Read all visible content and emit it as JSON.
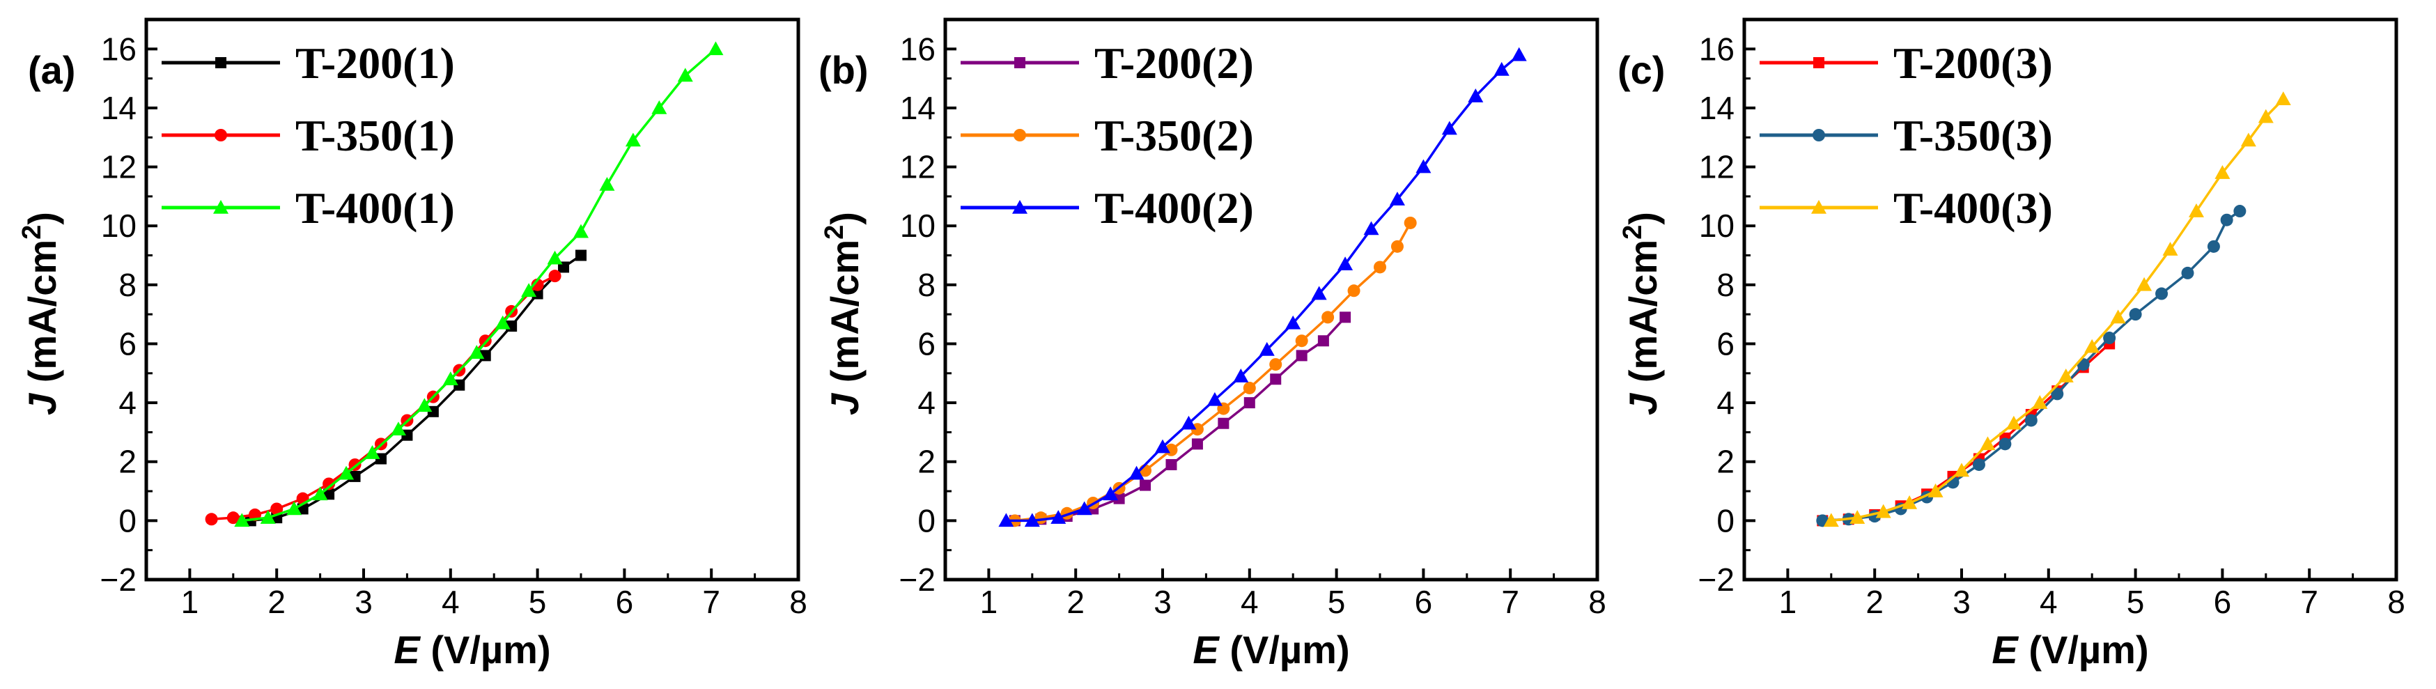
{
  "figure_title": "",
  "chart_data": [
    {
      "panel_label": "(a)",
      "type": "line",
      "xlabel_italic": "E",
      "xlabel_unit": " (V/µm)",
      "ylabel_italic": "J",
      "ylabel_unit": " (mA/cm",
      "ylabel_sup": "2",
      "ylabel_close": ")",
      "xlim": [
        0.5,
        8
      ],
      "ylim": [
        -2,
        17
      ],
      "xticks": [
        1,
        2,
        3,
        4,
        5,
        6,
        7,
        8
      ],
      "yticks": [
        -2,
        0,
        2,
        4,
        6,
        8,
        10,
        12,
        14,
        16
      ],
      "xtick_labels": [
        "1",
        "2",
        "3",
        "4",
        "5",
        "6",
        "7",
        "8"
      ],
      "ytick_labels": [
        "−2",
        "0",
        "2",
        "4",
        "6",
        "8",
        "10",
        "12",
        "14",
        "16"
      ],
      "series": [
        {
          "name": "T-200(1)",
          "color": "#000000",
          "marker": "square",
          "x": [
            1.7,
            2.0,
            2.3,
            2.6,
            2.9,
            3.2,
            3.5,
            3.8,
            4.1,
            4.4,
            4.7,
            5.0,
            5.3,
            5.5
          ],
          "y": [
            0.0,
            0.1,
            0.4,
            0.9,
            1.5,
            2.1,
            2.9,
            3.7,
            4.6,
            5.6,
            6.6,
            7.7,
            8.6,
            9.0
          ]
        },
        {
          "name": "T-350(1)",
          "color": "#ff0000",
          "marker": "circle",
          "x": [
            1.25,
            1.5,
            1.75,
            2.0,
            2.3,
            2.6,
            2.9,
            3.2,
            3.5,
            3.8,
            4.1,
            4.4,
            4.7,
            5.0,
            5.2
          ],
          "y": [
            0.05,
            0.1,
            0.2,
            0.4,
            0.75,
            1.25,
            1.9,
            2.6,
            3.4,
            4.2,
            5.1,
            6.1,
            7.1,
            8.0,
            8.3
          ]
        },
        {
          "name": "T-400(1)",
          "color": "#00ff00",
          "marker": "triangle",
          "x": [
            1.6,
            1.9,
            2.2,
            2.5,
            2.8,
            3.1,
            3.4,
            3.7,
            4.0,
            4.3,
            4.6,
            4.9,
            5.2,
            5.5,
            5.8,
            6.1,
            6.4,
            6.7,
            7.05
          ],
          "y": [
            0.0,
            0.1,
            0.4,
            0.9,
            1.6,
            2.3,
            3.1,
            3.9,
            4.8,
            5.7,
            6.7,
            7.8,
            8.9,
            9.8,
            11.4,
            12.9,
            14.0,
            15.1,
            16.0
          ]
        }
      ]
    },
    {
      "panel_label": "(b)",
      "type": "line",
      "xlabel_italic": "E",
      "xlabel_unit": " (V/µm)",
      "ylabel_italic": "J",
      "ylabel_unit": " (mA/cm",
      "ylabel_sup": "2",
      "ylabel_close": ")",
      "xlim": [
        0.5,
        8
      ],
      "ylim": [
        -2,
        17
      ],
      "xticks": [
        1,
        2,
        3,
        4,
        5,
        6,
        7,
        8
      ],
      "yticks": [
        -2,
        0,
        2,
        4,
        6,
        8,
        10,
        12,
        14,
        16
      ],
      "xtick_labels": [
        "1",
        "2",
        "3",
        "4",
        "5",
        "6",
        "7",
        "8"
      ],
      "ytick_labels": [
        "−2",
        "0",
        "2",
        "4",
        "6",
        "8",
        "10",
        "12",
        "14",
        "16"
      ],
      "series": [
        {
          "name": "T-200(2)",
          "color": "#800080",
          "marker": "square",
          "x": [
            1.3,
            1.6,
            1.9,
            2.2,
            2.5,
            2.8,
            3.1,
            3.4,
            3.7,
            4.0,
            4.3,
            4.6,
            4.85,
            5.1
          ],
          "y": [
            0.0,
            0.05,
            0.15,
            0.4,
            0.75,
            1.2,
            1.9,
            2.6,
            3.3,
            4.0,
            4.8,
            5.6,
            6.1,
            6.9
          ]
        },
        {
          "name": "T-350(2)",
          "color": "#ff8000",
          "marker": "circle",
          "x": [
            1.3,
            1.6,
            1.9,
            2.2,
            2.5,
            2.8,
            3.1,
            3.4,
            3.7,
            4.0,
            4.3,
            4.6,
            4.9,
            5.2,
            5.5,
            5.7,
            5.85
          ],
          "y": [
            0.0,
            0.1,
            0.25,
            0.6,
            1.1,
            1.7,
            2.4,
            3.1,
            3.8,
            4.5,
            5.3,
            6.1,
            6.9,
            7.8,
            8.6,
            9.3,
            10.1
          ]
        },
        {
          "name": "T-400(2)",
          "color": "#0000ff",
          "marker": "triangle",
          "x": [
            1.2,
            1.5,
            1.8,
            2.1,
            2.4,
            2.7,
            3.0,
            3.3,
            3.6,
            3.9,
            4.2,
            4.5,
            4.8,
            5.1,
            5.4,
            5.7,
            6.0,
            6.3,
            6.6,
            6.9,
            7.1
          ],
          "y": [
            0.0,
            0.0,
            0.1,
            0.4,
            0.9,
            1.6,
            2.5,
            3.3,
            4.1,
            4.9,
            5.8,
            6.7,
            7.7,
            8.7,
            9.9,
            10.9,
            12.0,
            13.3,
            14.4,
            15.3,
            15.8
          ]
        }
      ]
    },
    {
      "panel_label": "(c)",
      "type": "line",
      "xlabel_italic": "E",
      "xlabel_unit": " (V/µm)",
      "ylabel_italic": "J",
      "ylabel_unit": " (mA/cm",
      "ylabel_sup": "2",
      "ylabel_close": ")",
      "xlim": [
        0.5,
        8
      ],
      "ylim": [
        -2,
        17
      ],
      "xticks": [
        1,
        2,
        3,
        4,
        5,
        6,
        7,
        8
      ],
      "yticks": [
        -2,
        0,
        2,
        4,
        6,
        8,
        10,
        12,
        14,
        16
      ],
      "xtick_labels": [
        "1",
        "2",
        "3",
        "4",
        "5",
        "6",
        "7",
        "8"
      ],
      "ytick_labels": [
        "−2",
        "0",
        "2",
        "4",
        "6",
        "8",
        "10",
        "12",
        "14",
        "16"
      ],
      "series": [
        {
          "name": "T-200(3)",
          "color": "#ff0000",
          "marker": "square",
          "x": [
            1.4,
            1.7,
            2.0,
            2.3,
            2.6,
            2.9,
            3.2,
            3.5,
            3.8,
            4.1,
            4.4,
            4.7
          ],
          "y": [
            0.0,
            0.05,
            0.2,
            0.5,
            0.9,
            1.5,
            2.1,
            2.8,
            3.6,
            4.4,
            5.2,
            6.0
          ]
        },
        {
          "name": "T-350(3)",
          "color": "#1f5f8b",
          "marker": "circle",
          "x": [
            1.4,
            1.7,
            2.0,
            2.3,
            2.6,
            2.9,
            3.2,
            3.5,
            3.8,
            4.1,
            4.4,
            4.7,
            5.0,
            5.3,
            5.6,
            5.9,
            6.05,
            6.2
          ],
          "y": [
            0.0,
            0.05,
            0.15,
            0.4,
            0.8,
            1.3,
            1.9,
            2.6,
            3.4,
            4.3,
            5.3,
            6.2,
            7.0,
            7.7,
            8.4,
            9.3,
            10.2,
            10.5
          ]
        },
        {
          "name": "T-400(3)",
          "color": "#ffc000",
          "marker": "triangle",
          "x": [
            1.5,
            1.8,
            2.1,
            2.4,
            2.7,
            3.0,
            3.3,
            3.6,
            3.9,
            4.2,
            4.5,
            4.8,
            5.1,
            5.4,
            5.7,
            6.0,
            6.3,
            6.5,
            6.7
          ],
          "y": [
            0.0,
            0.1,
            0.3,
            0.6,
            1.0,
            1.7,
            2.6,
            3.3,
            4.0,
            4.9,
            5.9,
            6.9,
            8.0,
            9.2,
            10.5,
            11.8,
            12.9,
            13.7,
            14.3
          ]
        }
      ]
    }
  ]
}
